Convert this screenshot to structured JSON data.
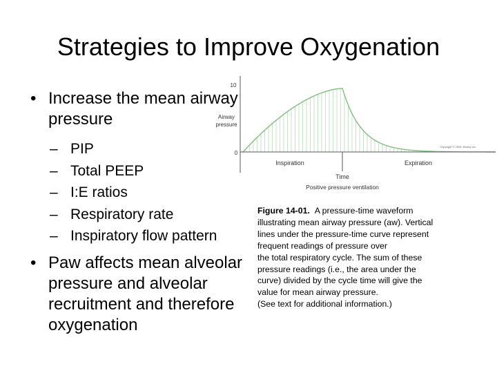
{
  "slide": {
    "title": "Strategies to Improve Oxygenation",
    "bullet1": "Increase the mean airway pressure",
    "sub_items": [
      "PIP",
      "Total PEEP",
      "I:E ratios",
      "Respiratory rate",
      "Inspiratory flow pattern"
    ],
    "bullet2": "Paw affects mean alveolar pressure and alveolar recruitment and therefore oxygenation"
  },
  "figure": {
    "y_tick_top": "10",
    "y_tick_zero": "0",
    "y_label_line1": "Airway",
    "y_label_line2": "pressure",
    "copyright": "Copyright © 2006, Mosby Inc.",
    "phase_inspiration": "Inspiration",
    "phase_expiration": "Expiration",
    "x_label": "Time",
    "subtitle": "Positive pressure ventilation",
    "curve_color": "#7fbf7f",
    "line_color": "#b8dcb8"
  },
  "caption": {
    "label": "Figure 14-01.",
    "lines": [
      "A pressure-time waveform",
      "illustrating mean airway pressure (aw). Vertical",
      "lines under the pressure-time curve represent",
      "frequent readings of pressure over",
      "the total respiratory cycle. The sum of these",
      "pressure readings (i.e., the area under the",
      "curve) divided by the cycle time will give the",
      "value for mean airway pressure.",
      "(See text for additional information.)"
    ]
  }
}
